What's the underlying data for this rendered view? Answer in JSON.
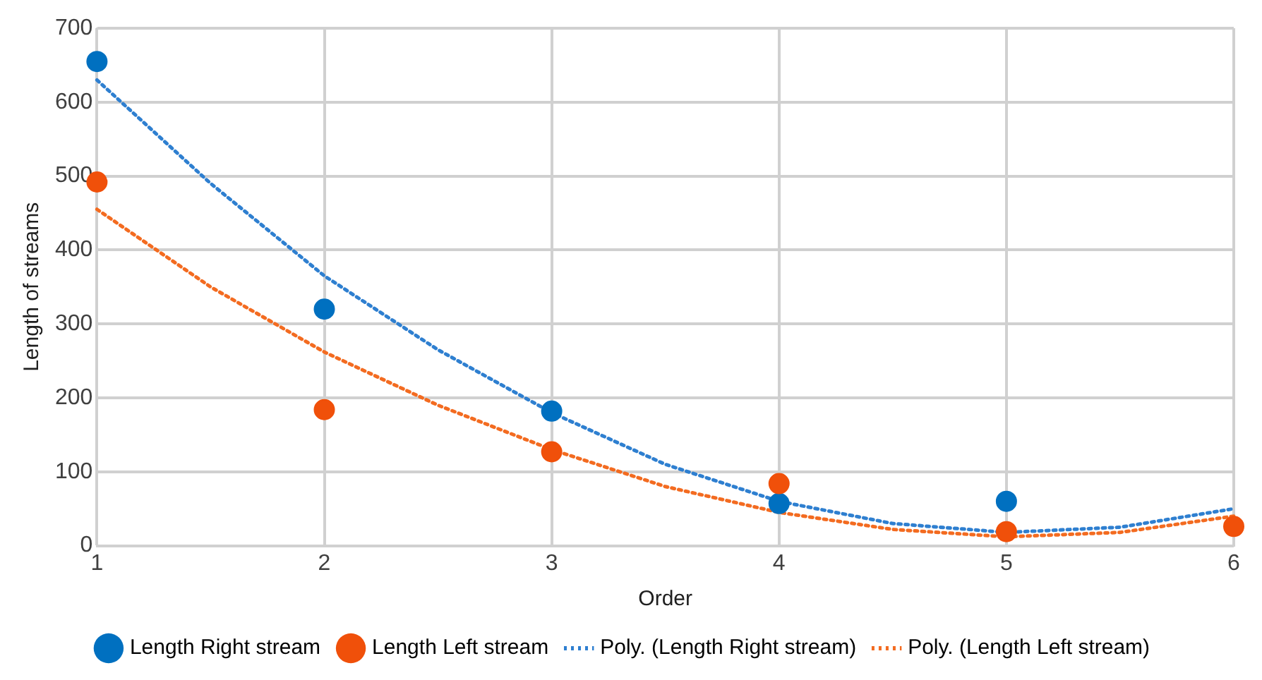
{
  "chart_data": {
    "type": "scatter",
    "xlabel": "Order",
    "ylabel": "Length of streams",
    "x": [
      1,
      2,
      3,
      4,
      5,
      6
    ],
    "xlim": [
      1,
      6
    ],
    "xticks": [
      1,
      2,
      3,
      4,
      5,
      6
    ],
    "ylim": [
      0,
      700
    ],
    "yticks": [
      0,
      100,
      200,
      300,
      400,
      500,
      600,
      700
    ],
    "grid": true,
    "legend": "bottom",
    "marker": "circle",
    "series": [
      {
        "name": "Length Right stream",
        "type": "scatter",
        "color": "#0070c0",
        "values": [
          655,
          320,
          182,
          57,
          60,
          null
        ]
      },
      {
        "name": "Length Left stream",
        "type": "scatter",
        "color": "#f0500a",
        "values": [
          492,
          184,
          127,
          84,
          19,
          26
        ]
      },
      {
        "name": "Poly. (Length Right stream)",
        "type": "line",
        "color": "#2e7fd0",
        "line_style": "dotted",
        "marker": "none",
        "x": [
          1,
          1.5,
          2,
          2.5,
          3,
          3.5,
          4,
          4.5,
          5,
          5.5,
          6
        ],
        "values": [
          630,
          490,
          365,
          265,
          180,
          110,
          60,
          30,
          18,
          25,
          50
        ]
      },
      {
        "name": "Poly. (Length Left stream)",
        "type": "line",
        "color": "#f36b20",
        "line_style": "dotted",
        "marker": "none",
        "x": [
          1,
          1.5,
          2,
          2.5,
          3,
          3.5,
          4,
          4.5,
          5,
          5.5,
          6
        ],
        "values": [
          455,
          350,
          262,
          190,
          130,
          80,
          45,
          22,
          12,
          18,
          40
        ]
      }
    ]
  }
}
